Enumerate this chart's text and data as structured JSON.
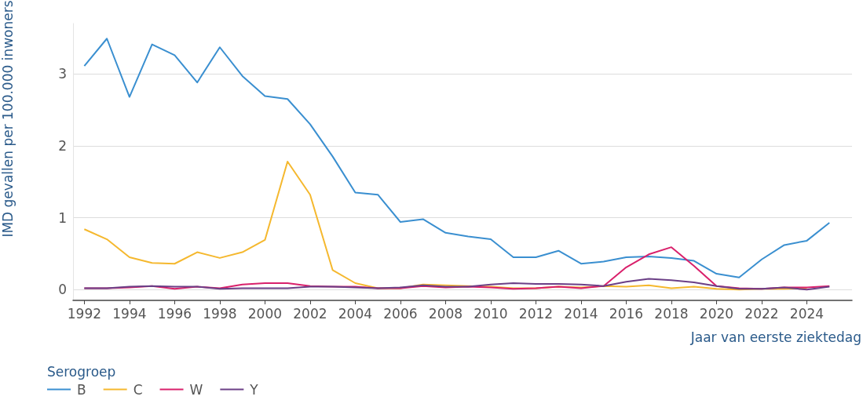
{
  "chart_data": {
    "type": "line",
    "xlabel": "Jaar van eerste ziektedag",
    "ylabel": "IMD gevallen per 100.000 inwoners",
    "legend_title": "Serogroep",
    "legend": "bottom left",
    "grid": "y",
    "marker": "none",
    "x": [
      1992,
      1993,
      1994,
      1995,
      1996,
      1997,
      1998,
      1999,
      2000,
      2001,
      2002,
      2003,
      2004,
      2005,
      2006,
      2007,
      2008,
      2009,
      2010,
      2011,
      2012,
      2013,
      2014,
      2015,
      2016,
      2017,
      2018,
      2019,
      2020,
      2021,
      2022,
      2023,
      2024,
      2025
    ],
    "xlim": [
      1991.5,
      2026
    ],
    "xticks": [
      1992,
      1994,
      1996,
      1998,
      2000,
      2002,
      2004,
      2006,
      2008,
      2010,
      2012,
      2014,
      2016,
      2018,
      2020,
      2022,
      2024
    ],
    "ylim": [
      -0.15,
      3.7
    ],
    "yticks": [
      0,
      1,
      2,
      3
    ],
    "series": [
      {
        "name": "B",
        "color": "#3a8fd0",
        "values": [
          3.11,
          3.49,
          2.68,
          3.41,
          3.26,
          2.88,
          3.37,
          2.97,
          2.69,
          2.65,
          2.3,
          1.85,
          1.35,
          1.32,
          0.94,
          0.98,
          0.79,
          0.74,
          0.7,
          0.45,
          0.45,
          0.54,
          0.36,
          0.39,
          0.45,
          0.46,
          0.44,
          0.4,
          0.22,
          0.17,
          0.42,
          0.62,
          0.68,
          0.93
        ]
      },
      {
        "name": "C",
        "color": "#f5b82e",
        "values": [
          0.84,
          0.7,
          0.45,
          0.37,
          0.36,
          0.52,
          0.44,
          0.52,
          0.69,
          1.78,
          1.32,
          0.27,
          0.09,
          0.02,
          0.02,
          0.07,
          0.06,
          0.05,
          0.04,
          0.02,
          0.02,
          0.04,
          0.03,
          0.05,
          0.04,
          0.06,
          0.02,
          0.04,
          0.01,
          0,
          0.01,
          0.01,
          0.02,
          null
        ]
      },
      {
        "name": "W",
        "color": "#d9206b",
        "values": [
          0.02,
          0.02,
          0.03,
          0.05,
          0.01,
          0.04,
          0.02,
          0.07,
          0.09,
          0.09,
          0.05,
          0.04,
          0.04,
          0.02,
          0.02,
          0.05,
          0.03,
          0.04,
          0.03,
          0.01,
          0.02,
          0.04,
          0.02,
          0.05,
          0.31,
          0.49,
          0.59,
          0.33,
          0.05,
          0.02,
          0.01,
          0.03,
          0.03,
          0.05
        ]
      },
      {
        "name": "Y",
        "color": "#6b3f86",
        "values": [
          0.02,
          0.02,
          0.04,
          0.05,
          0.04,
          0.04,
          0.01,
          0.02,
          0.02,
          0.02,
          0.04,
          0.04,
          0.03,
          0.02,
          0.03,
          0.06,
          0.04,
          0.04,
          0.07,
          0.09,
          0.08,
          0.08,
          0.07,
          0.05,
          0.11,
          0.15,
          0.13,
          0.1,
          0.05,
          0.01,
          0.01,
          0.03,
          0,
          0.04
        ]
      }
    ]
  }
}
